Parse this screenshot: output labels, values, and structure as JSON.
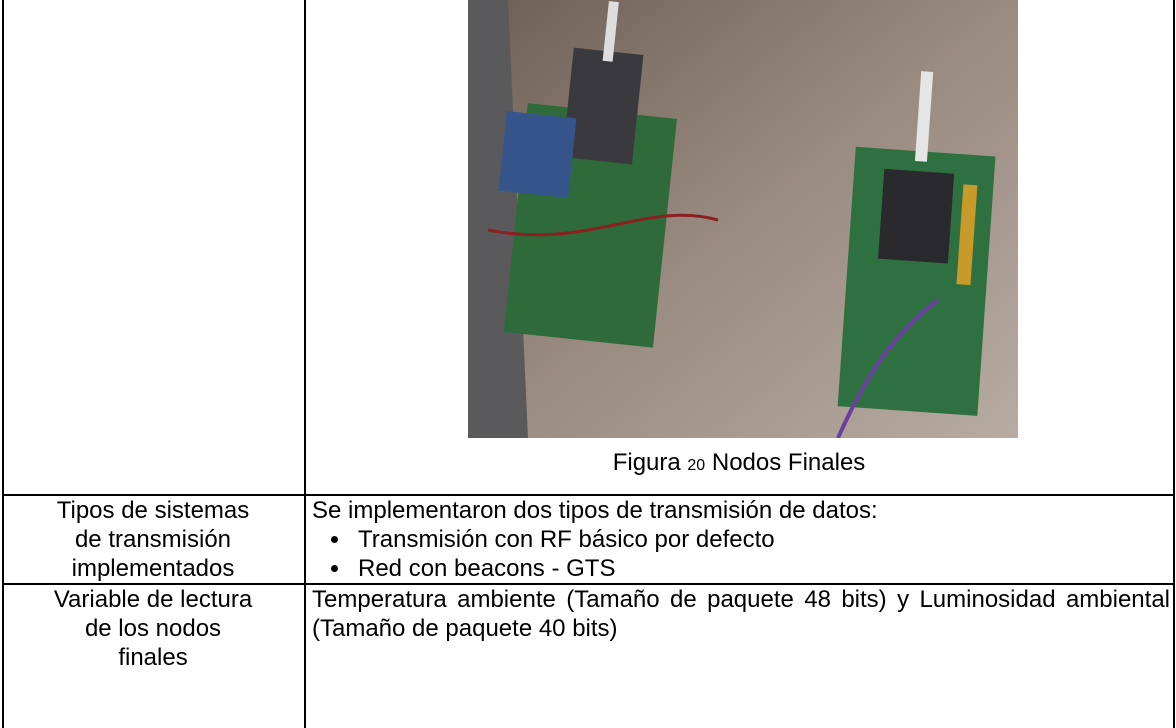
{
  "figure": {
    "caption_prefix": "Figura",
    "caption_number": "20",
    "caption_text": "Nodos Finales"
  },
  "table": {
    "rows": [
      [
        "Tipos de sistemas de transmisión implementados",
        {
          "intro": "Se implementaron dos tipos de transmisión de datos:",
          "bullets": [
            "Transmisión con RF básico por defecto",
            "Red con beacons - GTS"
          ]
        }
      ],
      [
        "Variable de lectura de los nodos finales",
        "Temperatura ambiente (Tamaño de paquete 48 bits) y Luminosidad ambiental (Tamaño de paquete 40 bits)"
      ]
    ]
  }
}
